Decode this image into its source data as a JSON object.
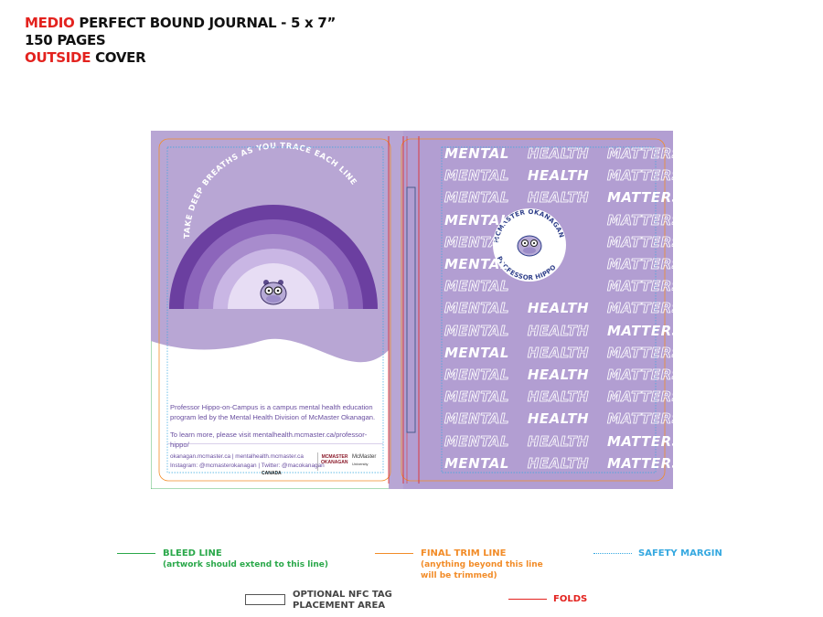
{
  "header": {
    "line1_red": "MEDIO",
    "line1_rest": " PERFECT BOUND JOURNAL - 5 x 7”",
    "line2": "150 PAGES",
    "line3_red": "OUTSIDE",
    "line3_rest": " COVER"
  },
  "back_cover": {
    "arc_text": "TAKE DEEP BREATHS AS YOU TRACE EACH LINE",
    "paragraph1": "Professor Hippo-on-Campus is a campus mental health education program led by the Mental Health Division of McMaster Okanagan.",
    "paragraph2_prefix": "To learn more, please visit ",
    "paragraph2_link": "mentalhealth.mcmaster.ca/professor-hippo/",
    "footer_line1": "okanagan.mcmaster.ca | mentalhealth.mcmaster.ca",
    "footer_line2": "Instagram: @mcmasterokanagan | Twitter: @macokanagan",
    "footer_country": "CANADA",
    "logo1_line1": "MCMASTER",
    "logo1_line2": "OKANAGAN",
    "logo2_line1": "McMaster",
    "logo2_line2": "University"
  },
  "front_cover": {
    "words": [
      "MENTAL",
      "HEALTH",
      "MATTERS"
    ],
    "badge_top": "MCMASTER OKANAGAN",
    "badge_bottom": "PROFESSOR HIPPO"
  },
  "legend": {
    "bleed_title": "BLEED LINE",
    "bleed_sub": "(artwork should extend to this line)",
    "trim_title": "FINAL TRIM LINE",
    "trim_sub1": "(anything beyond this line",
    "trim_sub2": "will be trimmed)",
    "safety": "SAFETY MARGIN",
    "nfc1": "OPTIONAL NFC TAG",
    "nfc2": "PLACEMENT AREA",
    "folds": "FOLDS"
  },
  "colors": {
    "bleed": "#2aa84a",
    "trim": "#f28c28",
    "safety": "#35a8e0",
    "folds": "#e3221e",
    "cover_purple": "#b8a6d4",
    "front_purple": "#b29ed2",
    "rainbow": [
      "#6b3fa0",
      "#8c65bb",
      "#a88ccd",
      "#c9b6e4",
      "#e7ddf4"
    ]
  }
}
